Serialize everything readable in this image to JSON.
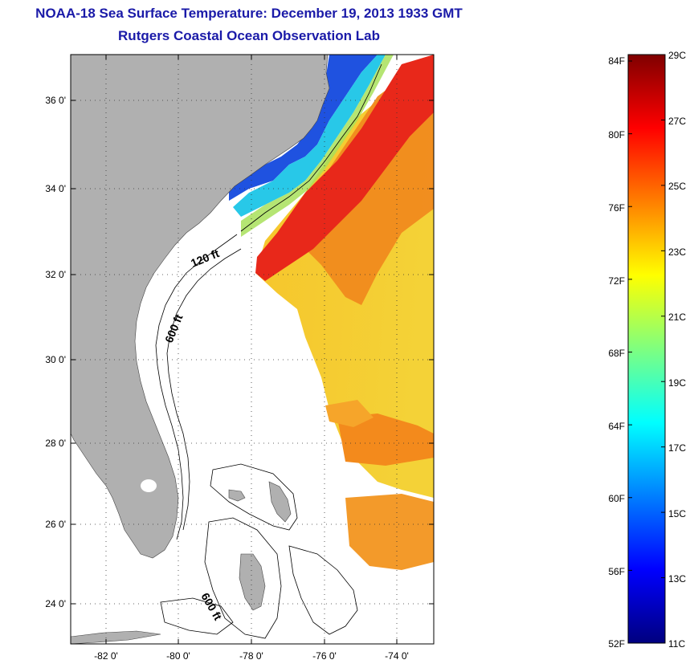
{
  "header": {
    "title": "NOAA-18 Sea Surface Temperature:  December 19, 2013 1933 GMT",
    "subtitle": "Rutgers Coastal Ocean Observation Lab"
  },
  "map": {
    "lat_ticks": [
      "36 0'",
      "34 0'",
      "32 0'",
      "30 0'",
      "28 0'",
      "26 0'",
      "24 0'"
    ],
    "lon_ticks": [
      "-82 0'",
      "-80 0'",
      "-78 0'",
      "-76 0'",
      "-74 0'"
    ],
    "contour_labels": [
      "120 ft",
      "600 ft",
      "600 ft"
    ],
    "colors": {
      "land": "#b0b0b0",
      "ocean_no_data": "#ffffff",
      "warm_core": "#e8261a",
      "warm": "#f36a12",
      "mid": "#f6b91f",
      "cool": "#f0e63a",
      "cold": "#1a3cd8"
    }
  },
  "colorbar": {
    "f_labels": [
      "84F",
      "80F",
      "76F",
      "72F",
      "68F",
      "64F",
      "60F",
      "56F",
      "52F"
    ],
    "c_labels": [
      "29C",
      "27C",
      "25C",
      "23C",
      "21C",
      "19C",
      "17C",
      "15C",
      "13C",
      "11C"
    ],
    "range_c": [
      11,
      29
    ],
    "colormap": [
      "#00007f",
      "#0000ff",
      "#007fff",
      "#00ffff",
      "#7fff7f",
      "#ffff00",
      "#ff7f00",
      "#ff0000",
      "#7f0000"
    ]
  }
}
